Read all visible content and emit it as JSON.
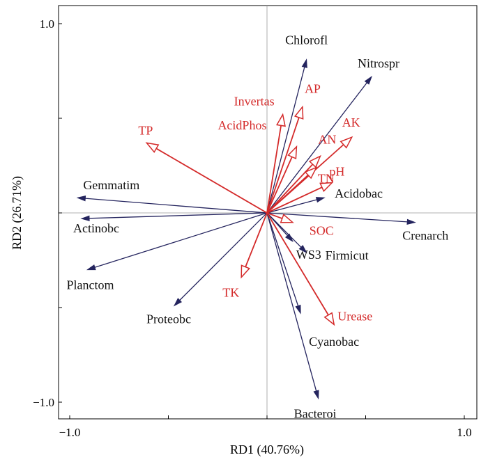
{
  "chart_data": {
    "type": "biplot",
    "xlabel": "RD1 (40.76%)",
    "ylabel": "RD2 (26.71%)",
    "xlim": [
      -1.0,
      1.0
    ],
    "ylim": [
      -1.0,
      1.0
    ],
    "x_ticks": [
      {
        "value": -1.0,
        "label": "−1.0"
      },
      {
        "value": 1.0,
        "label": "1.0"
      }
    ],
    "y_ticks": [
      {
        "value": 1.0,
        "label": "1.0"
      },
      {
        "value": -1.0,
        "label": "−1.0"
      }
    ],
    "series": [
      {
        "color": "#24245e",
        "arrow_style": "filled",
        "vectors": [
          {
            "label": "Chlorofl",
            "x": 0.2,
            "y": 0.81
          },
          {
            "label": "Nitrospr",
            "x": 0.53,
            "y": 0.72
          },
          {
            "label": "Gemmatim",
            "x": -0.96,
            "y": 0.08
          },
          {
            "label": "Actinobc",
            "x": -0.94,
            "y": -0.03
          },
          {
            "label": "Planctom",
            "x": -0.91,
            "y": -0.3
          },
          {
            "label": "Proteobc",
            "x": -0.47,
            "y": -0.49
          },
          {
            "label": "Acidobac",
            "x": 0.29,
            "y": 0.08
          },
          {
            "label": "Crenarch",
            "x": 0.75,
            "y": -0.05
          },
          {
            "label": "Firmicut",
            "x": 0.2,
            "y": -0.21
          },
          {
            "label": "WS3",
            "x": 0.13,
            "y": -0.15
          },
          {
            "label": "Cyanobac",
            "x": 0.17,
            "y": -0.53
          },
          {
            "label": "Bacteroi",
            "x": 0.26,
            "y": -0.98
          }
        ]
      },
      {
        "color": "#d42a2a",
        "arrow_style": "open",
        "vectors": [
          {
            "label": "Invertas",
            "x": 0.08,
            "y": 0.52
          },
          {
            "label": "AP",
            "x": 0.18,
            "y": 0.56
          },
          {
            "label": "AcidPhos",
            "x": 0.15,
            "y": 0.35
          },
          {
            "label": "TP",
            "x": -0.61,
            "y": 0.37
          },
          {
            "label": "AK",
            "x": 0.43,
            "y": 0.4
          },
          {
            "label": "AN",
            "x": 0.27,
            "y": 0.3
          },
          {
            "label": "pH",
            "x": 0.33,
            "y": 0.16
          },
          {
            "label": "TN",
            "x": 0.25,
            "y": 0.24
          },
          {
            "label": "SOC",
            "x": 0.13,
            "y": -0.05
          },
          {
            "label": "TK",
            "x": -0.13,
            "y": -0.34
          },
          {
            "label": "Urease",
            "x": 0.34,
            "y": -0.59
          }
        ]
      }
    ]
  }
}
